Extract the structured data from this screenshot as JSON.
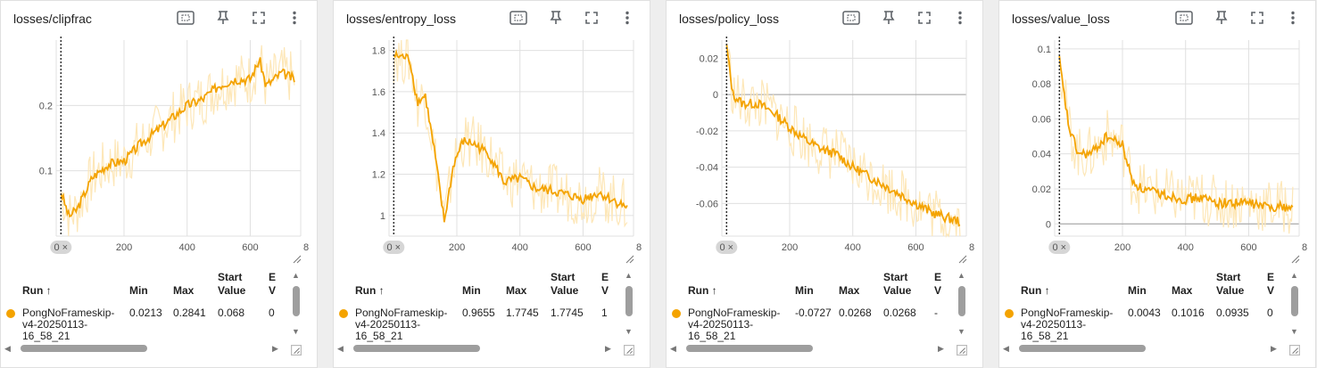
{
  "accent_color": "#f4a300",
  "light_color": "#fde7b8",
  "cards": [
    {
      "title": "losses/clipfrac",
      "zero_chip": "0 ×",
      "x_ticks": [
        "200",
        "400",
        "600",
        "8"
      ],
      "y_ticks": [
        "0.2",
        "0.1"
      ],
      "table": {
        "headers": {
          "run": "Run ↑",
          "min": "Min",
          "max": "Max",
          "start": "Start Value",
          "extra": "E V"
        },
        "row": {
          "run": "PongNoFrameskip-v4-20250113-16_58_21",
          "min": "0.0213",
          "max": "0.2841",
          "start": "0.068",
          "extra": "0"
        }
      }
    },
    {
      "title": "losses/entropy_loss",
      "zero_chip": "0 ×",
      "x_ticks": [
        "200",
        "400",
        "600",
        "8"
      ],
      "y_ticks": [
        "1.8",
        "1.6",
        "1.4",
        "1.2",
        "1"
      ],
      "table": {
        "headers": {
          "run": "Run ↑",
          "min": "Min",
          "max": "Max",
          "start": "Start Value",
          "extra": "E V"
        },
        "row": {
          "run": "PongNoFrameskip-v4-20250113-16_58_21",
          "min": "0.9655",
          "max": "1.7745",
          "start": "1.7745",
          "extra": "1"
        }
      }
    },
    {
      "title": "losses/policy_loss",
      "zero_chip": "0 ×",
      "x_ticks": [
        "200",
        "400",
        "600",
        "8"
      ],
      "y_ticks": [
        "0.02",
        "0",
        "-0.02",
        "-0.04",
        "-0.06"
      ],
      "table": {
        "headers": {
          "run": "Run ↑",
          "min": "Min",
          "max": "Max",
          "start": "Start Value",
          "extra": "E V"
        },
        "row": {
          "run": "PongNoFrameskip-v4-20250113-16_58_21",
          "min": "-0.0727",
          "max": "0.0268",
          "start": "0.0268",
          "extra": "-"
        }
      }
    },
    {
      "title": "losses/value_loss",
      "zero_chip": "0 ×",
      "x_ticks": [
        "200",
        "400",
        "600",
        "8"
      ],
      "y_ticks": [
        "0.1",
        "0.08",
        "0.06",
        "0.04",
        "0.02",
        "0"
      ],
      "table": {
        "headers": {
          "run": "Run ↑",
          "min": "Min",
          "max": "Max",
          "start": "Start Value",
          "extra": "E V"
        },
        "row": {
          "run": "PongNoFrameskip-v4-20250113-16_58_21",
          "min": "0.0043",
          "max": "0.1016",
          "start": "0.0935",
          "extra": "0"
        }
      }
    }
  ],
  "chart_data": [
    {
      "type": "line",
      "title": "losses/clipfrac",
      "x": [
        0,
        25,
        50,
        100,
        150,
        200,
        250,
        300,
        350,
        400,
        450,
        500,
        550,
        600,
        630,
        650,
        700,
        740
      ],
      "series": [
        {
          "name": "PongNoFrameskip-v4-20250113-16_58_21",
          "values": [
            0.068,
            0.03,
            0.04,
            0.09,
            0.11,
            0.115,
            0.14,
            0.16,
            0.18,
            0.2,
            0.21,
            0.23,
            0.24,
            0.24,
            0.27,
            0.23,
            0.25,
            0.24
          ]
        }
      ],
      "xlim": [
        -15,
        760
      ],
      "ylim": [
        0,
        0.3
      ]
    },
    {
      "type": "line",
      "title": "losses/entropy_loss",
      "x": [
        0,
        25,
        50,
        75,
        100,
        130,
        160,
        190,
        220,
        250,
        300,
        350,
        400,
        450,
        500,
        550,
        600,
        650,
        700,
        740
      ],
      "series": [
        {
          "name": "PongNoFrameskip-v4-20250113-16_58_21",
          "values": [
            1.7745,
            1.77,
            1.76,
            1.55,
            1.58,
            1.3,
            0.97,
            1.25,
            1.36,
            1.35,
            1.3,
            1.16,
            1.18,
            1.13,
            1.12,
            1.1,
            1.08,
            1.11,
            1.07,
            1.04
          ]
        }
      ],
      "xlim": [
        -15,
        760
      ],
      "ylim": [
        0.9,
        1.85
      ]
    },
    {
      "type": "line",
      "title": "losses/policy_loss",
      "x": [
        0,
        20,
        50,
        100,
        150,
        200,
        250,
        300,
        350,
        400,
        450,
        500,
        550,
        600,
        650,
        700,
        740
      ],
      "series": [
        {
          "name": "PongNoFrameskip-v4-20250113-16_58_21",
          "values": [
            0.0268,
            0.0,
            -0.005,
            -0.005,
            -0.01,
            -0.018,
            -0.025,
            -0.03,
            -0.033,
            -0.04,
            -0.045,
            -0.05,
            -0.055,
            -0.06,
            -0.065,
            -0.068,
            -0.07
          ]
        }
      ],
      "xlim": [
        -15,
        760
      ],
      "ylim": [
        -0.078,
        0.03
      ]
    },
    {
      "type": "line",
      "title": "losses/value_loss",
      "x": [
        0,
        10,
        30,
        60,
        100,
        150,
        200,
        230,
        260,
        300,
        350,
        400,
        450,
        500,
        550,
        600,
        650,
        700,
        740
      ],
      "series": [
        {
          "name": "PongNoFrameskip-v4-20250113-16_58_21",
          "values": [
            0.0935,
            0.08,
            0.055,
            0.04,
            0.04,
            0.05,
            0.045,
            0.025,
            0.02,
            0.018,
            0.016,
            0.014,
            0.015,
            0.012,
            0.012,
            0.012,
            0.01,
            0.01,
            0.009
          ]
        }
      ],
      "xlim": [
        -15,
        760
      ],
      "ylim": [
        -0.007,
        0.105
      ]
    }
  ]
}
